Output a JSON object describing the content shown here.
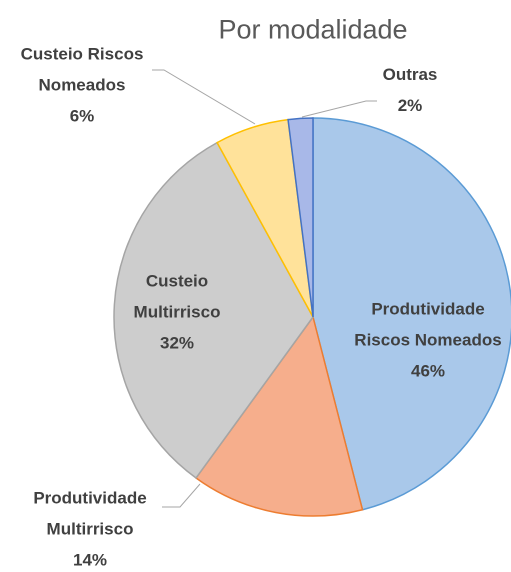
{
  "chart_data": {
    "type": "pie",
    "title": "Por modalidade",
    "categories": [
      "Produtividade Riscos Nomeados",
      "Produtividade Multirrisco",
      "Custeio Multirrisco",
      "Custeio Riscos Nomeados",
      "Outras"
    ],
    "values": [
      46,
      14,
      32,
      6,
      2
    ],
    "value_labels": [
      "46%",
      "14%",
      "32%",
      "6%",
      "2%"
    ],
    "colors": [
      "#a9c8ea",
      "#f6ae8c",
      "#cdcdcd",
      "#ffe29a",
      "#a8b8e8"
    ],
    "edge_colors": [
      "#5b9bd5",
      "#ed7d31",
      "#a5a5a5",
      "#ffc000",
      "#4472c4"
    ]
  }
}
